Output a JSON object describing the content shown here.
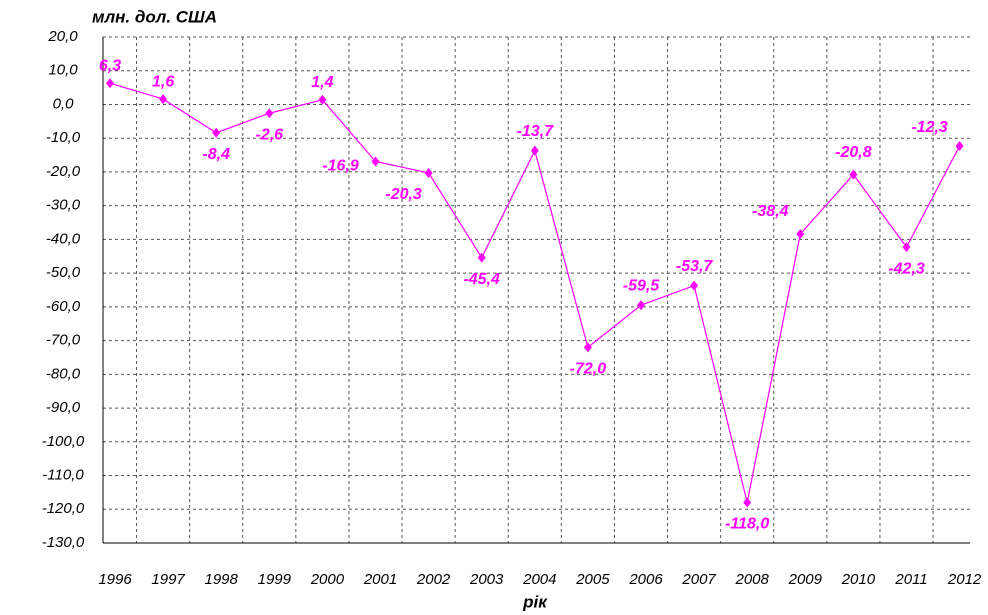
{
  "chart_data": {
    "type": "line",
    "y_label": "млн. дол. США",
    "x_label": "рік",
    "categories": [
      "1996",
      "1997",
      "1998",
      "1999",
      "2000",
      "2001",
      "2002",
      "2003",
      "2004",
      "2005",
      "2006",
      "2007",
      "2008",
      "2009",
      "2010",
      "2011",
      "2012"
    ],
    "series": [
      {
        "name": "",
        "color": "#ff00ff",
        "values": [
          6.3,
          1.6,
          -8.4,
          -2.6,
          1.4,
          -16.9,
          -20.3,
          -45.4,
          -13.7,
          -72.0,
          -59.5,
          -53.7,
          -118.0,
          -38.4,
          -20.8,
          -42.3,
          -12.3
        ],
        "value_labels": [
          "6,3",
          "1,6",
          "-8,4",
          "-2,6",
          "1,4",
          "-16,9",
          "-20,3",
          "-45,4",
          "-13,7",
          "-72,0",
          "-59,5",
          "-53,7",
          "-118,0",
          "-38,4",
          "-20,8",
          "-42,3",
          "-12,3"
        ]
      }
    ],
    "ylim": [
      -130,
      20
    ],
    "yticks": [
      {
        "value": 20,
        "label": "20,0"
      },
      {
        "value": 10,
        "label": "10,0"
      },
      {
        "value": 0,
        "label": "0,0"
      },
      {
        "value": -10,
        "label": "-10,0"
      },
      {
        "value": -20,
        "label": "-20,0"
      },
      {
        "value": -30,
        "label": "-30,0"
      },
      {
        "value": -40,
        "label": "-40,0"
      },
      {
        "value": -50,
        "label": "-50,0"
      },
      {
        "value": -60,
        "label": "-60,0"
      },
      {
        "value": -70,
        "label": "-70,0"
      },
      {
        "value": -80,
        "label": "-80,0"
      },
      {
        "value": -90,
        "label": "-90,0"
      },
      {
        "value": -100,
        "label": "-100,0"
      },
      {
        "value": -110,
        "label": "-110,0"
      },
      {
        "value": -120,
        "label": "-120,0"
      },
      {
        "value": -130,
        "label": "-130,0"
      }
    ],
    "grid": true
  }
}
